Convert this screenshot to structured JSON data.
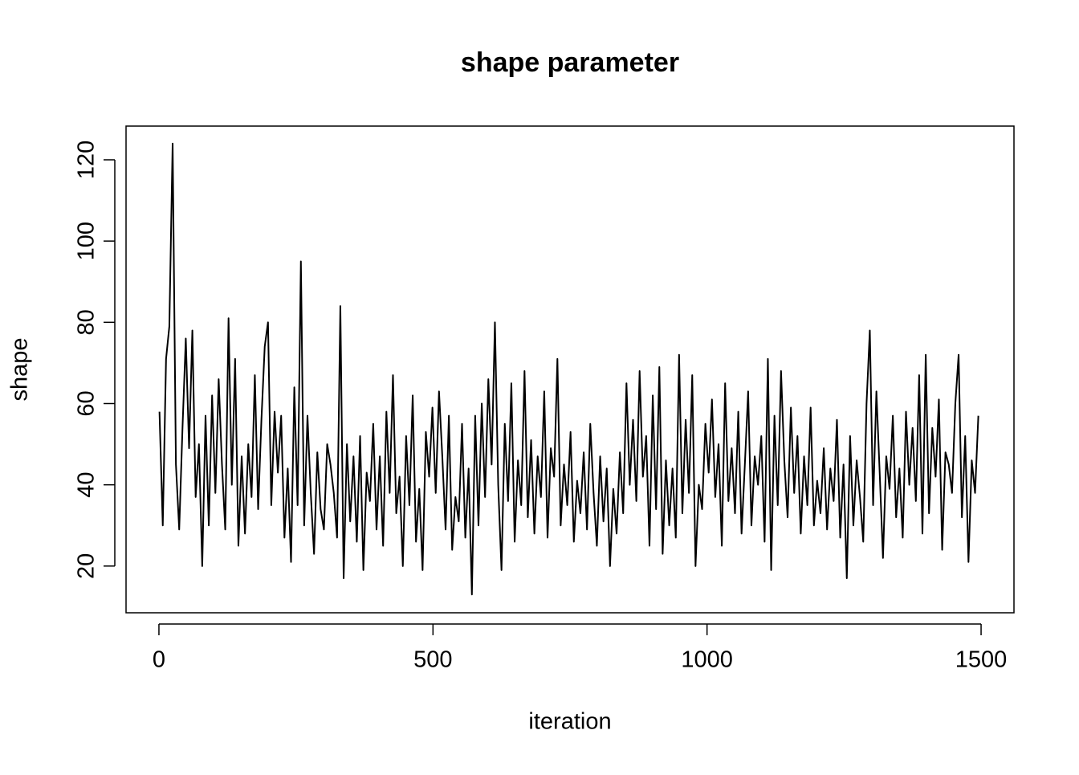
{
  "chart_data": {
    "type": "line",
    "title": "shape parameter",
    "x_label": "iteration",
    "y_label": "shape",
    "xlim": [
      -60,
      1560
    ],
    "ylim": [
      8.5,
      128.3
    ],
    "xticks": [
      0,
      500,
      1000,
      1500
    ],
    "yticks": [
      20,
      40,
      60,
      80,
      100,
      120
    ],
    "color": "#000000",
    "x": [
      1,
      7,
      13,
      19,
      25,
      31,
      37,
      43,
      49,
      55,
      61,
      67,
      73,
      79,
      85,
      91,
      97,
      103,
      109,
      115,
      121,
      127,
      133,
      139,
      145,
      151,
      157,
      163,
      169,
      175,
      181,
      187,
      193,
      199,
      205,
      211,
      217,
      223,
      229,
      235,
      241,
      247,
      253,
      259,
      265,
      271,
      277,
      283,
      289,
      295,
      301,
      307,
      313,
      319,
      325,
      331,
      337,
      343,
      349,
      355,
      361,
      367,
      373,
      379,
      385,
      391,
      397,
      403,
      409,
      415,
      421,
      427,
      433,
      439,
      445,
      451,
      457,
      463,
      469,
      475,
      481,
      487,
      493,
      499,
      505,
      511,
      517,
      523,
      529,
      535,
      541,
      547,
      553,
      559,
      565,
      571,
      577,
      583,
      589,
      595,
      601,
      607,
      613,
      619,
      625,
      631,
      637,
      643,
      649,
      655,
      661,
      667,
      673,
      679,
      685,
      691,
      697,
      703,
      709,
      715,
      721,
      727,
      733,
      739,
      745,
      751,
      757,
      763,
      769,
      775,
      781,
      787,
      793,
      799,
      805,
      811,
      817,
      823,
      829,
      835,
      841,
      847,
      853,
      859,
      865,
      871,
      877,
      883,
      889,
      895,
      901,
      907,
      913,
      919,
      925,
      931,
      937,
      943,
      949,
      955,
      961,
      967,
      973,
      979,
      985,
      991,
      997,
      1003,
      1009,
      1015,
      1021,
      1027,
      1033,
      1039,
      1045,
      1051,
      1057,
      1063,
      1069,
      1075,
      1081,
      1087,
      1093,
      1099,
      1105,
      1111,
      1117,
      1123,
      1129,
      1135,
      1141,
      1147,
      1153,
      1159,
      1165,
      1171,
      1177,
      1183,
      1189,
      1195,
      1201,
      1207,
      1213,
      1219,
      1225,
      1231,
      1237,
      1243,
      1249,
      1255,
      1261,
      1267,
      1273,
      1279,
      1285,
      1291,
      1297,
      1303,
      1309,
      1315,
      1321,
      1327,
      1333,
      1339,
      1345,
      1351,
      1357,
      1363,
      1369,
      1375,
      1381,
      1387,
      1393,
      1399,
      1405,
      1411,
      1417,
      1423,
      1429,
      1435,
      1441,
      1447,
      1453,
      1459,
      1465,
      1471,
      1477,
      1483,
      1489,
      1495
    ],
    "values": [
      58,
      30,
      71,
      79,
      124,
      45,
      29,
      54,
      76,
      49,
      78,
      37,
      50,
      20,
      57,
      30,
      62,
      38,
      66,
      45,
      29,
      81,
      40,
      71,
      25,
      47,
      28,
      50,
      37,
      67,
      34,
      56,
      74,
      80,
      35,
      58,
      43,
      57,
      27,
      44,
      21,
      64,
      35,
      95,
      30,
      57,
      38,
      23,
      48,
      34,
      29,
      50,
      45,
      38,
      27,
      84,
      17,
      50,
      31,
      47,
      26,
      52,
      19,
      43,
      36,
      55,
      29,
      47,
      25,
      58,
      38,
      67,
      33,
      42,
      20,
      52,
      35,
      62,
      26,
      39,
      19,
      53,
      42,
      59,
      38,
      63,
      47,
      29,
      57,
      24,
      37,
      31,
      55,
      27,
      44,
      13,
      57,
      30,
      60,
      37,
      66,
      45,
      80,
      40,
      19,
      55,
      36,
      65,
      26,
      46,
      35,
      68,
      32,
      51,
      28,
      47,
      37,
      63,
      27,
      49,
      42,
      71,
      30,
      45,
      35,
      53,
      26,
      41,
      33,
      48,
      29,
      55,
      38,
      25,
      47,
      31,
      44,
      20,
      39,
      28,
      48,
      33,
      65,
      40,
      56,
      36,
      68,
      42,
      52,
      25,
      62,
      34,
      69,
      23,
      46,
      30,
      44,
      27,
      72,
      33,
      56,
      38,
      67,
      20,
      40,
      34,
      55,
      43,
      61,
      37,
      50,
      25,
      65,
      36,
      49,
      33,
      58,
      28,
      45,
      63,
      30,
      47,
      40,
      52,
      26,
      71,
      19,
      57,
      35,
      68,
      46,
      32,
      59,
      38,
      52,
      28,
      47,
      35,
      59,
      30,
      41,
      33,
      49,
      29,
      44,
      36,
      56,
      27,
      45,
      17,
      52,
      30,
      46,
      37,
      26,
      60,
      78,
      35,
      63,
      43,
      22,
      47,
      39,
      57,
      32,
      44,
      27,
      58,
      40,
      54,
      36,
      67,
      28,
      72,
      33,
      54,
      42,
      61,
      24,
      48,
      45,
      38,
      60,
      72,
      32,
      52,
      21,
      46,
      38,
      57
    ]
  }
}
